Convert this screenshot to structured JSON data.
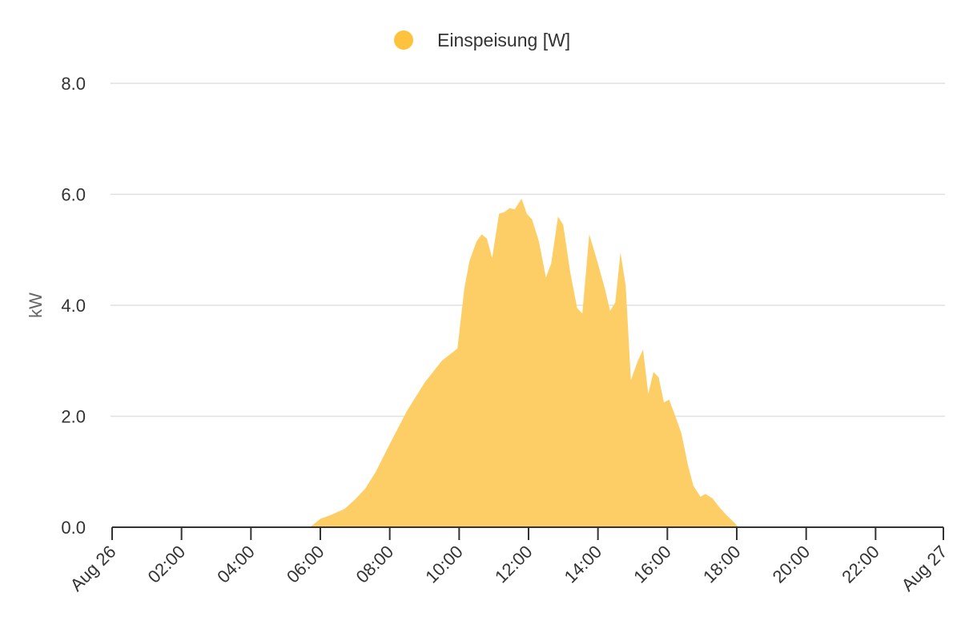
{
  "chart_data": {
    "type": "area",
    "legend": {
      "label": "Einspeisung [W]",
      "position": "top-center"
    },
    "ylabel": "kW",
    "ylim": [
      0,
      8
    ],
    "yticks": [
      "0.0",
      "2.0",
      "4.0",
      "6.0",
      "8.0"
    ],
    "xlim_hours": [
      0,
      24
    ],
    "xticks": [
      {
        "hour": 0,
        "label": "Aug 26"
      },
      {
        "hour": 2,
        "label": "02:00"
      },
      {
        "hour": 4,
        "label": "04:00"
      },
      {
        "hour": 6,
        "label": "06:00"
      },
      {
        "hour": 8,
        "label": "08:00"
      },
      {
        "hour": 10,
        "label": "10:00"
      },
      {
        "hour": 12,
        "label": "12:00"
      },
      {
        "hour": 14,
        "label": "14:00"
      },
      {
        "hour": 16,
        "label": "16:00"
      },
      {
        "hour": 18,
        "label": "18:00"
      },
      {
        "hour": 20,
        "label": "20:00"
      },
      {
        "hour": 22,
        "label": "22:00"
      },
      {
        "hour": 24,
        "label": "Aug 27"
      }
    ],
    "grid": true,
    "colors": {
      "fill": "#fdcd66",
      "legend_dot": "#fdc23e",
      "grid": "#e0e0e0",
      "axis": "#333333"
    },
    "series": [
      {
        "name": "Einspeisung [W]",
        "points": [
          [
            0,
            0
          ],
          [
            5.7,
            0
          ],
          [
            6.0,
            0.15
          ],
          [
            6.3,
            0.22
          ],
          [
            6.7,
            0.33
          ],
          [
            7.0,
            0.5
          ],
          [
            7.3,
            0.7
          ],
          [
            7.6,
            1.0
          ],
          [
            8.0,
            1.5
          ],
          [
            8.5,
            2.1
          ],
          [
            9.0,
            2.6
          ],
          [
            9.5,
            3.0
          ],
          [
            9.95,
            3.22
          ],
          [
            10.15,
            4.3
          ],
          [
            10.3,
            4.8
          ],
          [
            10.5,
            5.15
          ],
          [
            10.65,
            5.28
          ],
          [
            10.8,
            5.2
          ],
          [
            10.95,
            4.85
          ],
          [
            11.15,
            5.65
          ],
          [
            11.3,
            5.68
          ],
          [
            11.45,
            5.75
          ],
          [
            11.6,
            5.73
          ],
          [
            11.8,
            5.92
          ],
          [
            11.95,
            5.65
          ],
          [
            12.1,
            5.55
          ],
          [
            12.3,
            5.15
          ],
          [
            12.5,
            4.5
          ],
          [
            12.65,
            4.75
          ],
          [
            12.85,
            5.6
          ],
          [
            13.0,
            5.45
          ],
          [
            13.2,
            4.6
          ],
          [
            13.4,
            3.95
          ],
          [
            13.55,
            3.85
          ],
          [
            13.75,
            5.28
          ],
          [
            14.0,
            4.75
          ],
          [
            14.2,
            4.3
          ],
          [
            14.35,
            3.9
          ],
          [
            14.5,
            4.05
          ],
          [
            14.65,
            4.95
          ],
          [
            14.8,
            4.35
          ],
          [
            14.95,
            2.65
          ],
          [
            15.15,
            3.0
          ],
          [
            15.3,
            3.2
          ],
          [
            15.45,
            2.4
          ],
          [
            15.6,
            2.8
          ],
          [
            15.75,
            2.7
          ],
          [
            15.9,
            2.25
          ],
          [
            16.05,
            2.3
          ],
          [
            16.2,
            2.05
          ],
          [
            16.4,
            1.7
          ],
          [
            16.6,
            1.1
          ],
          [
            16.75,
            0.75
          ],
          [
            16.95,
            0.55
          ],
          [
            17.1,
            0.6
          ],
          [
            17.3,
            0.52
          ],
          [
            17.5,
            0.36
          ],
          [
            17.7,
            0.22
          ],
          [
            17.9,
            0.1
          ],
          [
            18.05,
            0
          ],
          [
            24,
            0
          ]
        ]
      }
    ]
  }
}
